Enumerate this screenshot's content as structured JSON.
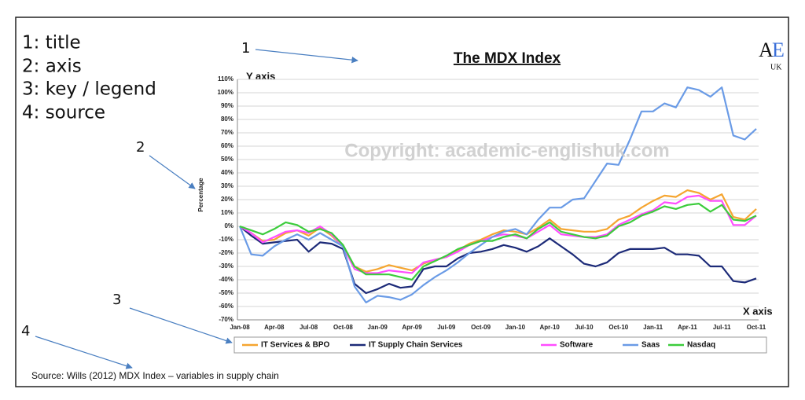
{
  "chart_data": {
    "type": "line",
    "title": "The MDX Index",
    "ylabel": "Percentage",
    "source": "Source: Wills (2012) MDX Index – variables in supply chain",
    "categories": [
      "Jan-08",
      null,
      null,
      "Apr-08",
      null,
      null,
      "Jul-08",
      null,
      null,
      "Oct-08",
      null,
      null,
      "Jan-09",
      null,
      null,
      "Apr-09",
      null,
      null,
      "Jul-09",
      null,
      null,
      "Oct-09",
      null,
      null,
      "Jan-10",
      null,
      null,
      "Apr-10",
      null,
      null,
      "Jul-10",
      null,
      null,
      "Oct-10",
      null,
      null,
      "Jan-11",
      null,
      null,
      "Apr-11",
      null,
      null,
      "Jul-11",
      null,
      null,
      "Oct-11"
    ],
    "ylim": [
      -70,
      110
    ],
    "yticks": [
      {
        "value": -70,
        "label": "-70%"
      },
      {
        "value": -60,
        "label": "-60%"
      },
      {
        "value": -50,
        "label": "-50%"
      },
      {
        "value": -40,
        "label": "-40%"
      },
      {
        "value": -30,
        "label": "-30%"
      },
      {
        "value": -20,
        "label": "-20%"
      },
      {
        "value": -10,
        "label": "-10%"
      },
      {
        "value": 0,
        "label": "0%"
      },
      {
        "value": 10,
        "label": "10%"
      },
      {
        "value": 20,
        "label": "20%"
      },
      {
        "value": 30,
        "label": "30%"
      },
      {
        "value": 40,
        "label": "40%"
      },
      {
        "value": 50,
        "label": "50%"
      },
      {
        "value": 60,
        "label": "60%"
      },
      {
        "value": 70,
        "label": "70%"
      },
      {
        "value": 80,
        "label": "80%"
      },
      {
        "value": 90,
        "label": "90%"
      },
      {
        "value": 100,
        "label": "100%"
      },
      {
        "value": 110,
        "label": "110%"
      }
    ],
    "grid": true,
    "series": [
      {
        "name": "IT Services & BPO",
        "color": "#f5a530",
        "values": [
          0,
          -5,
          -11,
          -10,
          -5,
          -3,
          -7,
          -1,
          -7,
          -15,
          -30,
          -34,
          -32,
          -29,
          -31,
          -33,
          -28,
          -25,
          -23,
          -18,
          -13,
          -10,
          -6,
          -3,
          -4,
          -6,
          -1,
          5,
          -2,
          -3,
          -4,
          -4,
          -2,
          5,
          8,
          14,
          19,
          23,
          22,
          27,
          25,
          20,
          24,
          7,
          5,
          13
        ]
      },
      {
        "name": "IT Supply Chain Services",
        "color": "#1c2a78",
        "values": [
          0,
          -7,
          -13,
          -12,
          -11,
          -10,
          -19,
          -12,
          -13,
          -17,
          -43,
          -50,
          -47,
          -43,
          -46,
          -45,
          -32,
          -30,
          -30,
          -24,
          -20,
          -19,
          -17,
          -14,
          -16,
          -19,
          -15,
          -9,
          -15,
          -21,
          -28,
          -30,
          -27,
          -20,
          -17,
          -17,
          -17,
          -16,
          -21,
          -21,
          -22,
          -30,
          -30,
          -41,
          -42,
          -39
        ]
      },
      {
        "name": "Software",
        "color": "#ff4dff",
        "values": [
          0,
          -5,
          -12,
          -8,
          -4,
          -3,
          -5,
          0,
          -6,
          -15,
          -32,
          -35,
          -35,
          -33,
          -34,
          -35,
          -27,
          -25,
          -23,
          -19,
          -14,
          -11,
          -8,
          -6,
          -7,
          -9,
          -4,
          1,
          -6,
          -7,
          -8,
          -8,
          -6,
          1,
          5,
          9,
          12,
          18,
          17,
          22,
          23,
          19,
          19,
          1,
          1,
          8
        ]
      },
      {
        "name": "Saas",
        "color": "#6a9be6",
        "values": [
          0,
          -21,
          -22,
          -15,
          -10,
          -6,
          -10,
          -5,
          -10,
          -15,
          -45,
          -57,
          -52,
          -53,
          -55,
          -51,
          -44,
          -38,
          -33,
          -27,
          -20,
          -14,
          -8,
          -4,
          -2,
          -6,
          5,
          14,
          14,
          20,
          21,
          34,
          47,
          46,
          65,
          86,
          86,
          92,
          89,
          104,
          102,
          97,
          104,
          68,
          65,
          73
        ]
      },
      {
        "name": "Nasdaq",
        "color": "#3ccc3c",
        "values": [
          0,
          -3,
          -6,
          -2,
          3,
          1,
          -4,
          -2,
          -5,
          -14,
          -30,
          -36,
          -36,
          -36,
          -38,
          -40,
          -30,
          -26,
          -22,
          -17,
          -14,
          -11,
          -11,
          -8,
          -6,
          -9,
          -2,
          3,
          -4,
          -6,
          -8,
          -9,
          -7,
          0,
          3,
          8,
          11,
          15,
          13,
          16,
          17,
          11,
          16,
          5,
          4,
          8
        ]
      }
    ]
  },
  "annotations": {
    "key": [
      "1: title",
      "2: axis",
      "3: key / legend",
      "4: source"
    ],
    "markers": [
      "1",
      "2",
      "3",
      "4"
    ],
    "y_axis": "Y axis",
    "x_axis": "X axis",
    "watermark": "Copyright: academic-englishuk.com",
    "logo": [
      "A",
      "E",
      "UK"
    ]
  }
}
